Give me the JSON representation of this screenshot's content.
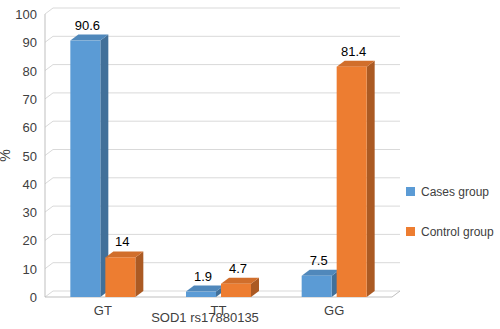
{
  "chart_data": {
    "type": "bar",
    "x_label": "SOD1 rs17880135",
    "y_label": "%",
    "categories": [
      "GT",
      "TT",
      "GG"
    ],
    "series": [
      {
        "name": "Cases group",
        "color": "#5b9bd5",
        "values": [
          90.6,
          1.9,
          7.5
        ]
      },
      {
        "name": "Control group",
        "color": "#ed7d31",
        "values": [
          14,
          4.7,
          81.4
        ]
      }
    ],
    "ylim": [
      0,
      100
    ],
    "yticks": [
      0,
      10,
      20,
      30,
      40,
      50,
      60,
      70,
      80,
      90,
      100
    ],
    "grid": true,
    "legend": "right",
    "data_labels": true
  }
}
